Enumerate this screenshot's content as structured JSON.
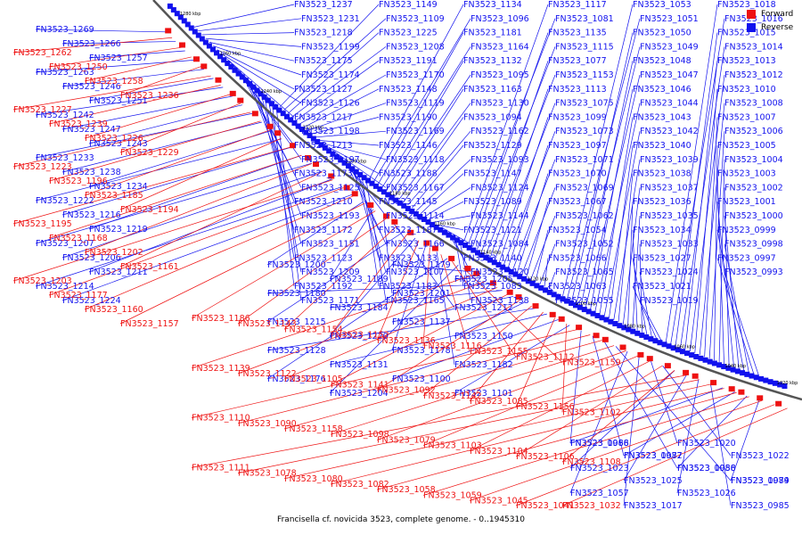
{
  "caption": "Francisella cf. novicida 3523, complete genome. - 0..1945310",
  "legend": [
    {
      "label": "Forward",
      "color": "#ee1111"
    },
    {
      "label": "Reverse",
      "color": "#1111ee"
    }
  ],
  "colors": {
    "forward": "#ee1111",
    "reverse": "#1111ee",
    "backbone": "#555555"
  },
  "ticks": [
    "1280 kbp",
    "1260 kbp",
    "1240 kbp",
    "1220 kbp",
    "1200 kbp",
    "1180 kbp",
    "1160 kbp",
    "1140 kbp",
    "1120 kbp",
    "1100 kbp",
    "1080 kbp",
    "1060 kbp",
    "1040 kbp",
    "1020 kbp"
  ],
  "reverse_labels": [
    "FN3523_1269",
    "FN3523_1266",
    "FN3523_1257",
    "FN3523_1263",
    "FN3523_1246",
    "FN3523_1251",
    "FN3523_1242",
    "FN3523_1247",
    "FN3523_1243",
    "FN3523_1233",
    "FN3523_1238",
    "FN3523_1234",
    "FN3523_1222",
    "FN3523_1216",
    "FN3523_1219",
    "FN3523_1207",
    "FN3523_1206",
    "FN3523_1211",
    "FN3523_1214",
    "FN3523_1224",
    "FN3523_1200",
    "FN3523_1189",
    "FN3523_1201",
    "FN3523_1212",
    "FN3523_1215",
    "FN3523_1220",
    "FN3523_1178",
    "FN3523_1182",
    "FN3523_1176",
    "FN3523_1204",
    "FN3523_1179",
    "FN3523_1205",
    "FN3523_1180",
    "FN3523_1184",
    "FN3523_1137",
    "FN3523_1150",
    "FN3523_1128",
    "FN3523_1131",
    "FN3523_1100",
    "FN3523_1101",
    "FN3523_1068",
    "FN3523_1072",
    "FN3523_1056",
    "FN3523_1074",
    "FN3523_1057",
    "FN3523_1017",
    "FN3523_1020",
    "FN3523_1022",
    "FN3523_1023",
    "FN3523_1025",
    "FN3523_1026",
    "FN3523_0985",
    "FN3523_0986",
    "FN3523_0987",
    "FN3523_0988",
    "FN3523_0989",
    "FN3523_1237",
    "FN3523_1231",
    "FN3523_1218",
    "FN3523_1199",
    "FN3523_1175",
    "FN3523_1174",
    "FN3523_1127",
    "FN3523_1126",
    "FN3523_1217",
    "FN3523_1198",
    "FN3523_1213",
    "FN3523_1197",
    "FN3523_1173",
    "FN3523_1125",
    "FN3523_1210",
    "FN3523_1193",
    "FN3523_1172",
    "FN3523_1151",
    "FN3523_1123",
    "FN3523_1209",
    "FN3523_1192",
    "FN3523_1171",
    "FN3523_1149",
    "FN3523_1109",
    "FN3523_1225",
    "FN3523_1208",
    "FN3523_1191",
    "FN3523_1170",
    "FN3523_1148",
    "FN3523_1119",
    "FN3523_1190",
    "FN3523_1169",
    "FN3523_1146",
    "FN3523_1118",
    "FN3523_1188",
    "FN3523_1167",
    "FN3523_1145",
    "FN3523_1114",
    "FN3523_1187",
    "FN3523_1166",
    "FN3523_1133",
    "FN3523_1107",
    "FN3523_1183",
    "FN3523_1165",
    "FN3523_1134",
    "FN3523_1096",
    "FN3523_1181",
    "FN3523_1164",
    "FN3523_1132",
    "FN3523_1095",
    "FN3523_1163",
    "FN3523_1130",
    "FN3523_1094",
    "FN3523_1162",
    "FN3523_1129",
    "FN3523_1093",
    "FN3523_1147",
    "FN3523_1124",
    "FN3523_1089",
    "FN3523_1144",
    "FN3523_1121",
    "FN3523_1084",
    "FN3523_1140",
    "FN3523_1120",
    "FN3523_1083",
    "FN3523_1138",
    "FN3523_1117",
    "FN3523_1081",
    "FN3523_1135",
    "FN3523_1115",
    "FN3523_1077",
    "FN3523_1153",
    "FN3523_1113",
    "FN3523_1075",
    "FN3523_1099",
    "FN3523_1073",
    "FN3523_1097",
    "FN3523_1071",
    "FN3523_1070",
    "FN3523_1069",
    "FN3523_1067",
    "FN3523_1062",
    "FN3523_1054",
    "FN3523_1052",
    "FN3523_1066",
    "FN3523_1065",
    "FN3523_1063",
    "FN3523_1055",
    "FN3523_1053",
    "FN3523_1051",
    "FN3523_1050",
    "FN3523_1049",
    "FN3523_1048",
    "FN3523_1047",
    "FN3523_1046",
    "FN3523_1044",
    "FN3523_1043",
    "FN3523_1042",
    "FN3523_1040",
    "FN3523_1039",
    "FN3523_1038",
    "FN3523_1037",
    "FN3523_1036",
    "FN3523_1035",
    "FN3523_1034",
    "FN3523_1033",
    "FN3523_1027",
    "FN3523_1024",
    "FN3523_1021",
    "FN3523_1019",
    "FN3523_1018",
    "FN3523_1016",
    "FN3523_1015",
    "FN3523_1014",
    "FN3523_1013",
    "FN3523_1012",
    "FN3523_1010",
    "FN3523_1008",
    "FN3523_1007",
    "FN3523_1006",
    "FN3523_1005",
    "FN3523_1004",
    "FN3523_1003",
    "FN3523_1002",
    "FN3523_1001",
    "FN3523_1000",
    "FN3523_0999",
    "FN3523_0998",
    "FN3523_0997",
    "FN3523_0993"
  ],
  "forward_labels": [
    "FN3523_1262",
    "FN3523_1250",
    "FN3523_1258",
    "FN3523_1236",
    "FN3523_1227",
    "FN3523_1239",
    "FN3523_1226",
    "FN3523_1229",
    "FN3523_1223",
    "FN3523_1196",
    "FN3523_1185",
    "FN3523_1194",
    "FN3523_1195",
    "FN3523_1168",
    "FN3523_1202",
    "FN3523_1161",
    "FN3523_1203",
    "FN3523_1177",
    "FN3523_1160",
    "FN3523_1157",
    "FN3523_1186",
    "FN3523_1143",
    "FN3523_1154",
    "FN3523_1152",
    "FN3523_1136",
    "FN3523_1116",
    "FN3523_1155",
    "FN3523_1112",
    "FN3523_1159",
    "FN3523_1139",
    "FN3523_1122",
    "FN3523_1105",
    "FN3523_1141",
    "FN3523_1092",
    "FN3523_1142",
    "FN3523_1085",
    "FN3523_1156",
    "FN3523_1102",
    "FN3523_1110",
    "FN3523_1090",
    "FN3523_1158",
    "FN3523_1098",
    "FN3523_1079",
    "FN3523_1103",
    "FN3523_1104",
    "FN3523_1106",
    "FN3523_1108",
    "FN3523_1111",
    "FN3523_1078",
    "FN3523_1080",
    "FN3523_1082",
    "FN3523_1058",
    "FN3523_1059",
    "FN3523_1045",
    "FN3523_1041",
    "FN3523_1032"
  ]
}
